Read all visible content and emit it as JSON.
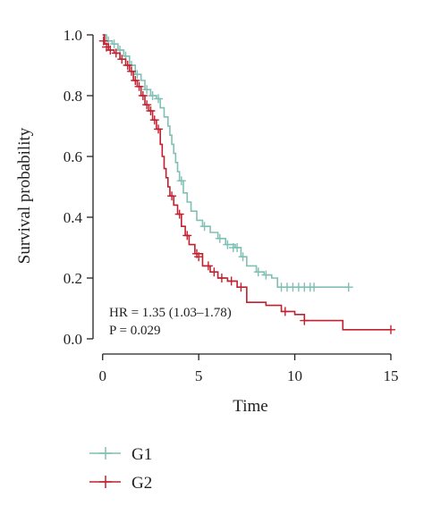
{
  "chart_data": {
    "type": "line",
    "subtype": "kaplan-meier",
    "xlabel": "Time",
    "ylabel": "Survival probability",
    "xlim": [
      -0.5,
      15.7
    ],
    "ylim": [
      -0.05,
      1.05
    ],
    "xticks": [
      0,
      5,
      10,
      15
    ],
    "yticks": [
      0.0,
      0.2,
      0.4,
      0.6,
      0.8,
      1.0
    ],
    "ytick_labels": [
      "0.0",
      "0.2",
      "0.4",
      "0.6",
      "0.8",
      "1.0"
    ],
    "grid": false,
    "legend_position": "bottom-left",
    "annotations": [
      "HR = 1.35 (1.03–1.78)",
      "P = 0.029"
    ],
    "series": [
      {
        "name": "G1",
        "color": "#80bfb4",
        "steps": [
          [
            0,
            1.0
          ],
          [
            0.2,
            0.98
          ],
          [
            0.5,
            0.97
          ],
          [
            0.8,
            0.95
          ],
          [
            1.1,
            0.93
          ],
          [
            1.4,
            0.9
          ],
          [
            1.7,
            0.87
          ],
          [
            2.0,
            0.85
          ],
          [
            2.2,
            0.82
          ],
          [
            2.5,
            0.8
          ],
          [
            2.8,
            0.79
          ],
          [
            3.0,
            0.76
          ],
          [
            3.2,
            0.73
          ],
          [
            3.4,
            0.7
          ],
          [
            3.5,
            0.67
          ],
          [
            3.6,
            0.64
          ],
          [
            3.7,
            0.61
          ],
          [
            3.8,
            0.58
          ],
          [
            3.9,
            0.55
          ],
          [
            4.0,
            0.52
          ],
          [
            4.2,
            0.48
          ],
          [
            4.4,
            0.45
          ],
          [
            4.6,
            0.42
          ],
          [
            4.9,
            0.39
          ],
          [
            5.2,
            0.37
          ],
          [
            5.6,
            0.35
          ],
          [
            6.0,
            0.33
          ],
          [
            6.4,
            0.31
          ],
          [
            6.9,
            0.3
          ],
          [
            7.2,
            0.27
          ],
          [
            7.5,
            0.24
          ],
          [
            8.0,
            0.22
          ],
          [
            8.4,
            0.21
          ],
          [
            8.8,
            0.2
          ],
          [
            9.1,
            0.17
          ],
          [
            12.8,
            0.17
          ]
        ],
        "censor": [
          [
            0.3,
            0.98
          ],
          [
            0.6,
            0.97
          ],
          [
            0.9,
            0.95
          ],
          [
            1.2,
            0.93
          ],
          [
            1.5,
            0.9
          ],
          [
            1.8,
            0.87
          ],
          [
            2.3,
            0.82
          ],
          [
            2.6,
            0.8
          ],
          [
            2.9,
            0.79
          ],
          [
            4.1,
            0.52
          ],
          [
            5.3,
            0.37
          ],
          [
            6.1,
            0.33
          ],
          [
            6.5,
            0.31
          ],
          [
            6.8,
            0.3
          ],
          [
            7.0,
            0.3
          ],
          [
            7.3,
            0.27
          ],
          [
            8.1,
            0.22
          ],
          [
            8.5,
            0.21
          ],
          [
            9.3,
            0.17
          ],
          [
            9.6,
            0.17
          ],
          [
            9.9,
            0.17
          ],
          [
            10.2,
            0.17
          ],
          [
            10.5,
            0.17
          ],
          [
            10.8,
            0.17
          ],
          [
            11.0,
            0.17
          ],
          [
            12.8,
            0.17
          ]
        ]
      },
      {
        "name": "G2",
        "color": "#c0202f",
        "steps": [
          [
            0,
            1.0
          ],
          [
            0.1,
            0.97
          ],
          [
            0.3,
            0.95
          ],
          [
            0.6,
            0.94
          ],
          [
            0.9,
            0.92
          ],
          [
            1.2,
            0.9
          ],
          [
            1.4,
            0.88
          ],
          [
            1.6,
            0.85
          ],
          [
            1.8,
            0.83
          ],
          [
            2.0,
            0.8
          ],
          [
            2.2,
            0.77
          ],
          [
            2.4,
            0.75
          ],
          [
            2.6,
            0.72
          ],
          [
            2.8,
            0.69
          ],
          [
            3.0,
            0.64
          ],
          [
            3.1,
            0.6
          ],
          [
            3.2,
            0.56
          ],
          [
            3.3,
            0.53
          ],
          [
            3.4,
            0.5
          ],
          [
            3.5,
            0.47
          ],
          [
            3.7,
            0.44
          ],
          [
            3.9,
            0.41
          ],
          [
            4.1,
            0.37
          ],
          [
            4.3,
            0.34
          ],
          [
            4.5,
            0.31
          ],
          [
            4.8,
            0.28
          ],
          [
            5.2,
            0.24
          ],
          [
            5.6,
            0.22
          ],
          [
            6.0,
            0.2
          ],
          [
            6.5,
            0.19
          ],
          [
            7.0,
            0.17
          ],
          [
            7.5,
            0.12
          ],
          [
            8.5,
            0.11
          ],
          [
            9.3,
            0.09
          ],
          [
            10.0,
            0.08
          ],
          [
            10.5,
            0.06
          ],
          [
            12.5,
            0.03
          ],
          [
            15.0,
            0.03
          ]
        ],
        "censor": [
          [
            0.05,
            0.98
          ],
          [
            0.2,
            0.96
          ],
          [
            0.4,
            0.95
          ],
          [
            0.7,
            0.94
          ],
          [
            1.0,
            0.92
          ],
          [
            1.3,
            0.9
          ],
          [
            1.5,
            0.88
          ],
          [
            1.7,
            0.85
          ],
          [
            1.9,
            0.83
          ],
          [
            2.1,
            0.8
          ],
          [
            2.3,
            0.77
          ],
          [
            2.5,
            0.75
          ],
          [
            2.7,
            0.72
          ],
          [
            2.9,
            0.69
          ],
          [
            3.6,
            0.47
          ],
          [
            4.0,
            0.41
          ],
          [
            4.4,
            0.34
          ],
          [
            4.9,
            0.28
          ],
          [
            5.0,
            0.27
          ],
          [
            5.5,
            0.24
          ],
          [
            5.8,
            0.22
          ],
          [
            6.2,
            0.2
          ],
          [
            6.7,
            0.19
          ],
          [
            7.2,
            0.17
          ],
          [
            9.5,
            0.09
          ],
          [
            10.5,
            0.06
          ],
          [
            15.0,
            0.03
          ]
        ]
      }
    ]
  }
}
